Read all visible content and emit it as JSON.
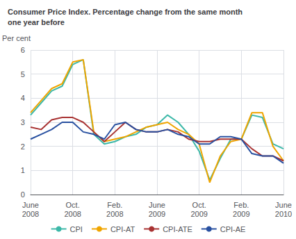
{
  "chart_data": {
    "type": "line",
    "title": "Consumer Price Index. Percentage change from the same month\none year before",
    "ylabel": "Per cent",
    "categories": [
      "June\n2008",
      null,
      null,
      null,
      "Oct.\n2008",
      null,
      null,
      null,
      "Feb.\n2008",
      null,
      null,
      null,
      "June\n2009",
      null,
      null,
      null,
      "Oct.\n2009",
      null,
      null,
      null,
      "Feb.\n2009",
      null,
      null,
      null,
      "June\n2010"
    ],
    "series": [
      {
        "name": "CPI",
        "color": "#3cb8a8",
        "values": [
          3.3,
          3.8,
          4.3,
          4.5,
          5.4,
          5.6,
          2.5,
          2.1,
          2.2,
          2.4,
          2.5,
          2.8,
          2.9,
          3.3,
          3.0,
          2.5,
          1.8,
          0.6,
          1.5,
          2.3,
          2.3,
          3.3,
          3.2,
          2.1,
          1.9
        ]
      },
      {
        "name": "CPI-AT",
        "color": "#f0a500",
        "values": [
          3.4,
          3.9,
          4.4,
          4.6,
          5.5,
          5.6,
          2.6,
          2.2,
          2.3,
          2.4,
          2.6,
          2.8,
          2.9,
          3.0,
          2.7,
          2.5,
          2.1,
          0.5,
          1.6,
          2.2,
          2.3,
          3.4,
          3.4,
          2.0,
          1.4
        ]
      },
      {
        "name": "CPI-ATE",
        "color": "#a83232",
        "values": [
          2.8,
          2.7,
          3.1,
          3.2,
          3.2,
          3.0,
          2.6,
          2.2,
          2.6,
          3.0,
          2.7,
          2.6,
          2.6,
          2.7,
          2.6,
          2.3,
          2.2,
          2.2,
          2.3,
          2.3,
          2.3,
          1.9,
          1.6,
          1.6,
          1.4
        ]
      },
      {
        "name": "CPI-AE",
        "color": "#2850a0",
        "values": [
          2.3,
          2.5,
          2.7,
          3.0,
          3.0,
          2.6,
          2.5,
          2.3,
          2.9,
          3.0,
          2.7,
          2.6,
          2.6,
          2.7,
          2.5,
          2.4,
          2.1,
          2.1,
          2.4,
          2.4,
          2.3,
          1.7,
          1.6,
          1.6,
          1.3
        ]
      }
    ],
    "ylim": [
      0,
      6
    ],
    "yticks": [
      0,
      1,
      2,
      3,
      4,
      5,
      6
    ],
    "grid": true,
    "legend": "bottom"
  }
}
